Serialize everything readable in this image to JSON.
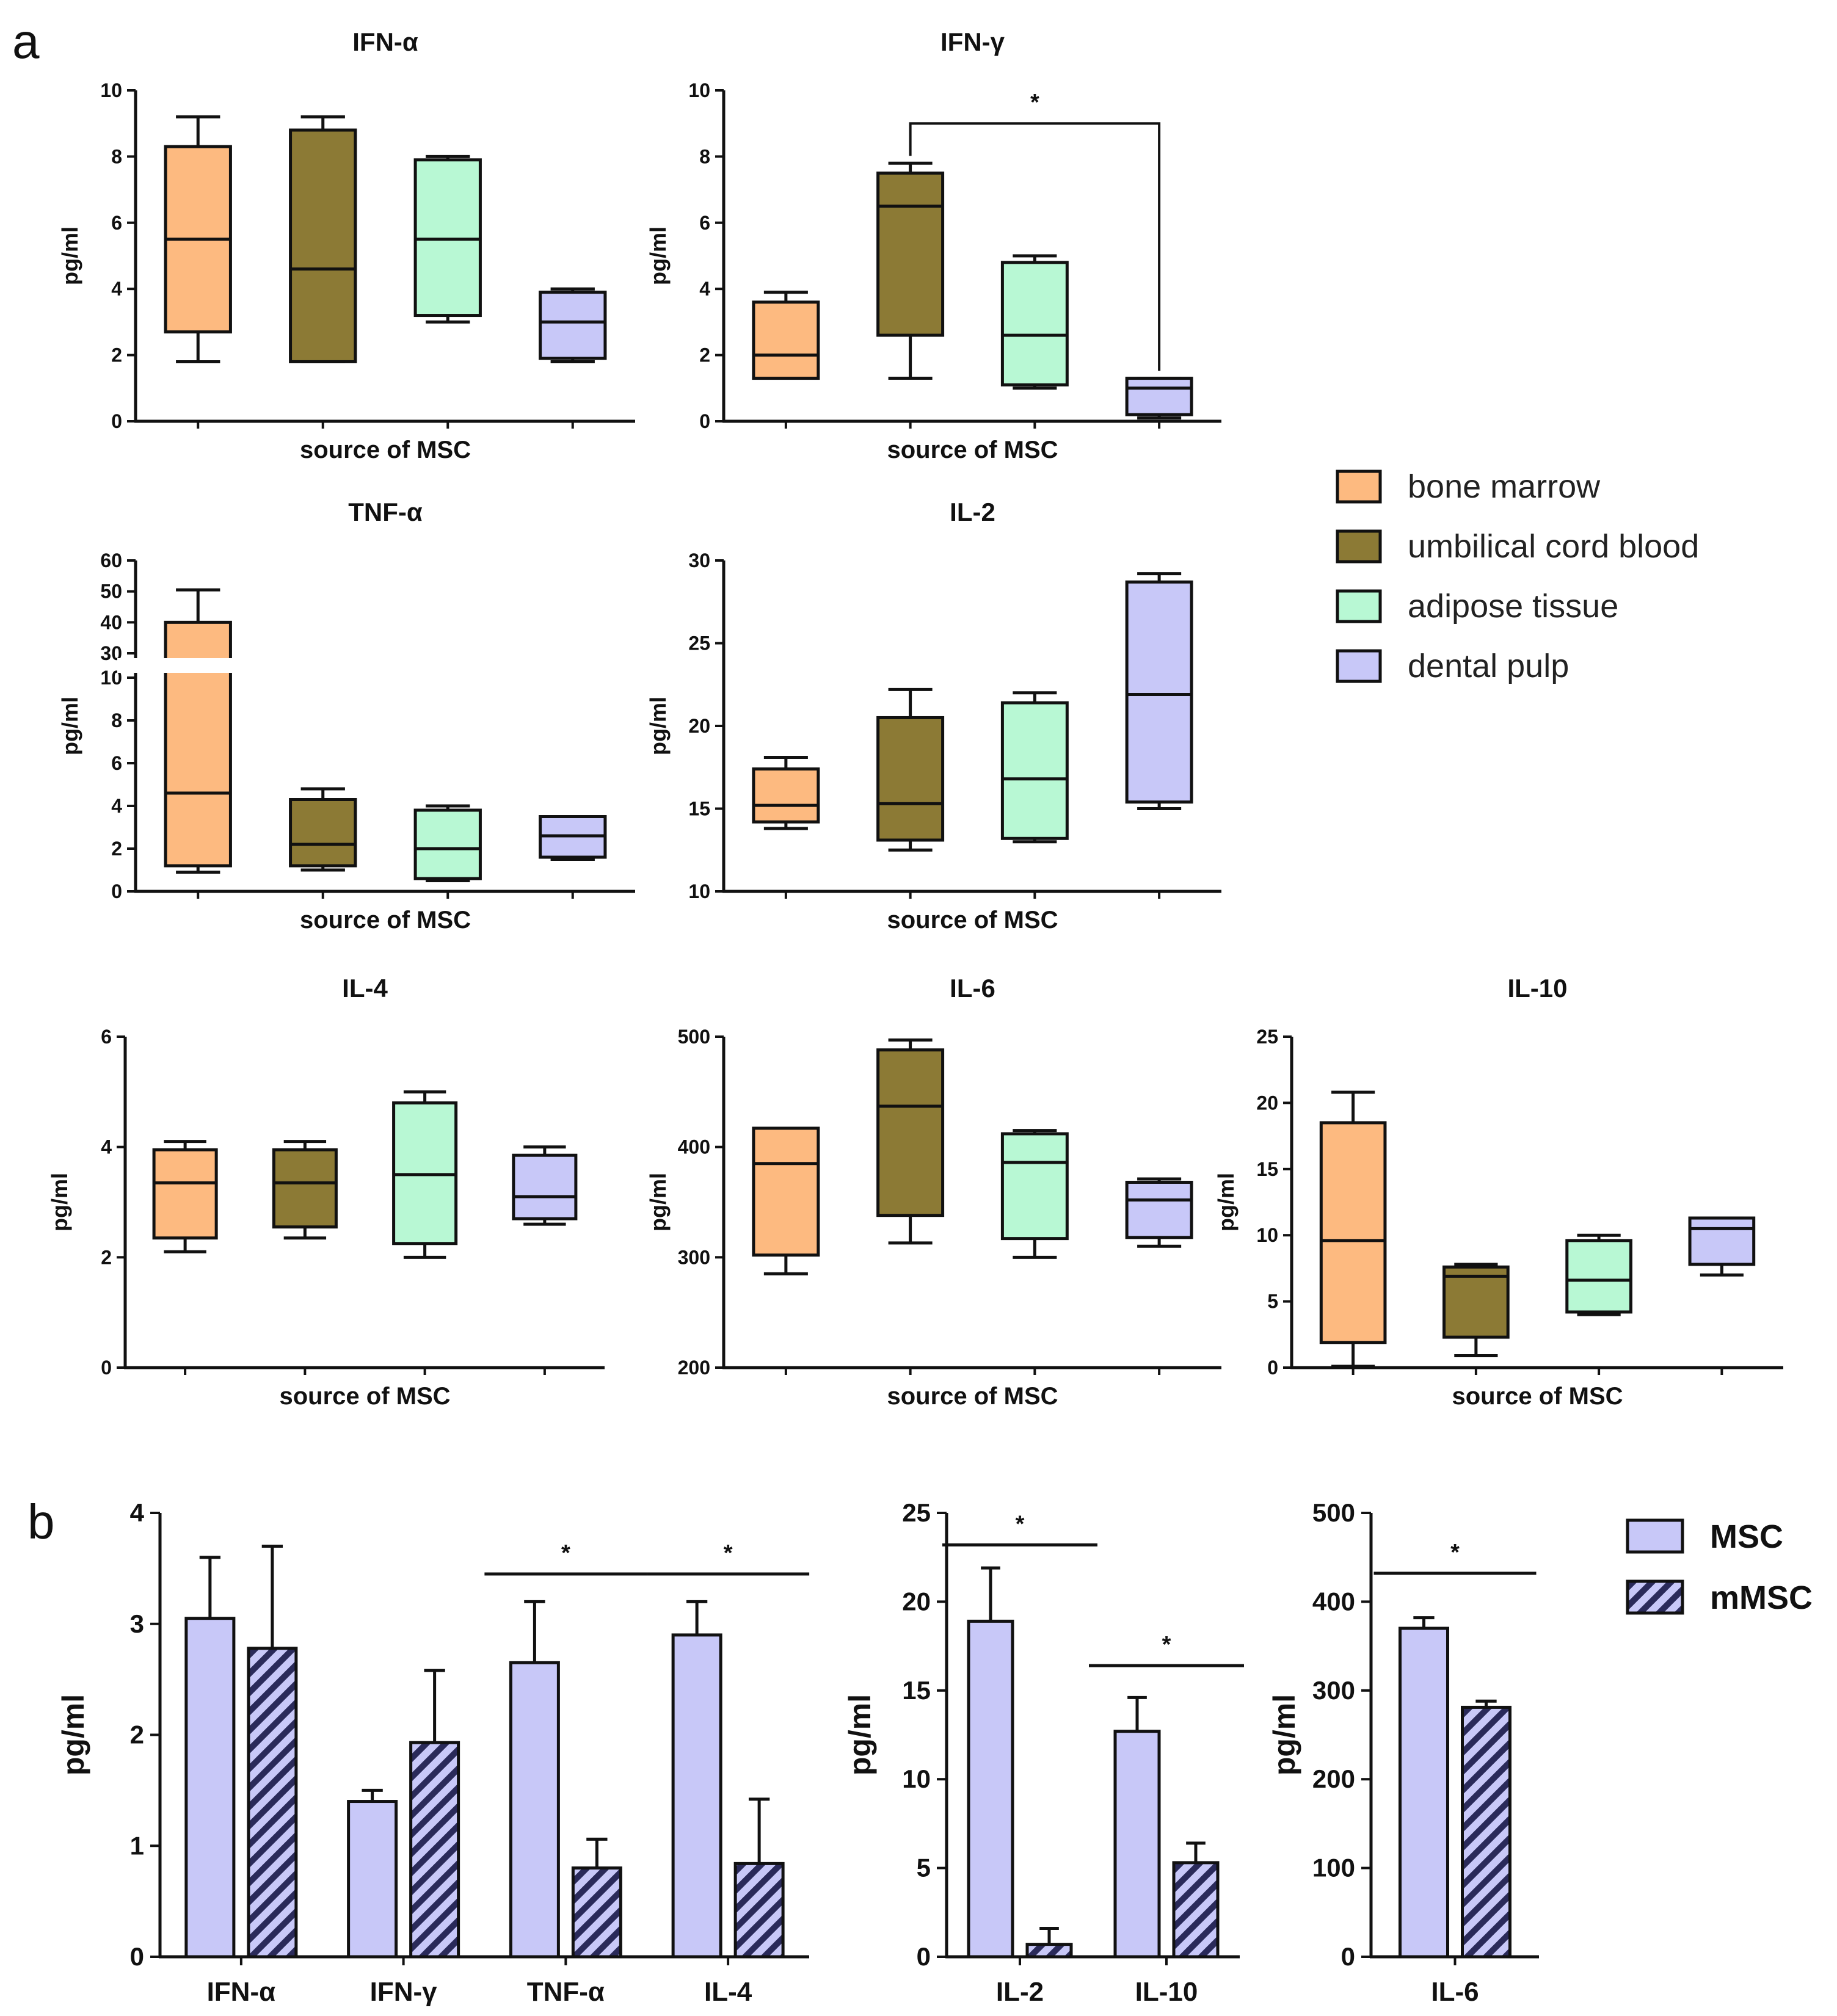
{
  "panel_labels": {
    "a": "a",
    "b": "b"
  },
  "colors": {
    "bone_marrow": "#FDBA80",
    "umbilical_cord_blood": "#8C7A35",
    "adipose_tissue": "#B8F8D4",
    "dental_pulp": "#C8C8F8",
    "msc": "#C8C8F8",
    "axis": "#111111"
  },
  "chart_data": [
    {
      "type": "box",
      "id": "ifn_alpha",
      "title": "IFN-α",
      "xlabel": "source of MSC",
      "ylabel": "pg/ml",
      "ylim": [
        0,
        10
      ],
      "yticks": [
        "0",
        "2",
        "4",
        "6",
        "8",
        "10"
      ],
      "groups": [
        "bone marrow",
        "umbilical cord blood",
        "adipose tissue",
        "dental pulp"
      ],
      "boxes": [
        {
          "min": 1.8,
          "q1": 2.7,
          "median": 5.5,
          "q3": 8.3,
          "max": 9.2
        },
        {
          "min": 1.8,
          "q1": 1.8,
          "median": 4.6,
          "q3": 8.8,
          "max": 9.2
        },
        {
          "min": 3.0,
          "q1": 3.2,
          "median": 5.5,
          "q3": 7.9,
          "max": 8.0
        },
        {
          "min": 1.8,
          "q1": 1.9,
          "median": 3.0,
          "q3": 3.9,
          "max": 4.0
        }
      ]
    },
    {
      "type": "box",
      "id": "ifn_gamma",
      "title": "IFN-γ",
      "xlabel": "source of MSC",
      "ylabel": "pg/ml",
      "ylim": [
        0,
        10
      ],
      "yticks": [
        "0",
        "2",
        "4",
        "6",
        "8",
        "10"
      ],
      "groups": [
        "bone marrow",
        "umbilical cord blood",
        "adipose tissue",
        "dental pulp"
      ],
      "boxes": [
        {
          "min": 1.3,
          "q1": 1.3,
          "median": 2.0,
          "q3": 3.6,
          "max": 3.9
        },
        {
          "min": 1.3,
          "q1": 2.6,
          "median": 6.5,
          "q3": 7.5,
          "max": 7.8
        },
        {
          "min": 1.0,
          "q1": 1.1,
          "median": 2.6,
          "q3": 4.8,
          "max": 5.0
        },
        {
          "min": 0.1,
          "q1": 0.2,
          "median": 1.0,
          "q3": 1.3,
          "max": 1.3
        }
      ],
      "significance": [
        {
          "from": 1,
          "to": 3,
          "level": 9.0,
          "label": "*"
        }
      ]
    },
    {
      "type": "box",
      "id": "tnf_alpha",
      "title": "TNF-α",
      "xlabel": "source of MSC",
      "ylabel": "pg/ml",
      "broken_axis": true,
      "lower_range": [
        0,
        10
      ],
      "lower_ticks": [
        "0",
        "2",
        "4",
        "6",
        "8",
        "10"
      ],
      "upper_range": [
        30,
        60
      ],
      "upper_ticks": [
        "30",
        "40",
        "50",
        "60"
      ],
      "groups": [
        "bone marrow",
        "umbilical cord blood",
        "adipose tissue",
        "dental pulp"
      ],
      "boxes": [
        {
          "min": 0.9,
          "q1": 1.2,
          "median": 4.6,
          "q3": 40.0,
          "max": 50.5
        },
        {
          "min": 1.0,
          "q1": 1.2,
          "median": 2.2,
          "q3": 4.3,
          "max": 4.8
        },
        {
          "min": 0.5,
          "q1": 0.6,
          "median": 2.0,
          "q3": 3.8,
          "max": 4.0
        },
        {
          "min": 1.5,
          "q1": 1.6,
          "median": 2.6,
          "q3": 3.5,
          "max": 3.5
        }
      ]
    },
    {
      "type": "box",
      "id": "il_2",
      "title": "IL-2",
      "xlabel": "source of MSC",
      "ylabel": "pg/ml",
      "ylim": [
        10,
        30
      ],
      "yticks": [
        "10",
        "15",
        "20",
        "25",
        "30"
      ],
      "groups": [
        "bone marrow",
        "umbilical cord blood",
        "adipose tissue",
        "dental pulp"
      ],
      "boxes": [
        {
          "min": 13.8,
          "q1": 14.2,
          "median": 15.2,
          "q3": 17.4,
          "max": 18.1
        },
        {
          "min": 12.5,
          "q1": 13.1,
          "median": 15.3,
          "q3": 20.5,
          "max": 22.2
        },
        {
          "min": 13.0,
          "q1": 13.2,
          "median": 16.8,
          "q3": 21.4,
          "max": 22.0
        },
        {
          "min": 15.0,
          "q1": 15.4,
          "median": 21.9,
          "q3": 28.7,
          "max": 29.2
        }
      ]
    },
    {
      "type": "box",
      "id": "il_4",
      "title": "IL-4",
      "xlabel": "source of MSC",
      "ylabel": "pg/ml",
      "ylim": [
        0,
        6
      ],
      "yticks": [
        "0",
        "2",
        "4",
        "6"
      ],
      "groups": [
        "bone marrow",
        "umbilical cord blood",
        "adipose tissue",
        "dental pulp"
      ],
      "boxes": [
        {
          "min": 2.1,
          "q1": 2.35,
          "median": 3.35,
          "q3": 3.95,
          "max": 4.1
        },
        {
          "min": 2.35,
          "q1": 2.55,
          "median": 3.35,
          "q3": 3.95,
          "max": 4.1
        },
        {
          "min": 2.0,
          "q1": 2.25,
          "median": 3.5,
          "q3": 4.8,
          "max": 5.0
        },
        {
          "min": 2.6,
          "q1": 2.7,
          "median": 3.1,
          "q3": 3.85,
          "max": 4.0
        }
      ]
    },
    {
      "type": "box",
      "id": "il_6",
      "title": "IL-6",
      "xlabel": "source of MSC",
      "ylabel": "pg/ml",
      "ylim": [
        200,
        500
      ],
      "yticks": [
        "200",
        "300",
        "400",
        "500"
      ],
      "groups": [
        "bone marrow",
        "umbilical cord blood",
        "adipose tissue",
        "dental pulp"
      ],
      "boxes": [
        {
          "min": 285,
          "q1": 302,
          "median": 385,
          "q3": 417,
          "max": 417
        },
        {
          "min": 313,
          "q1": 338,
          "median": 437,
          "q3": 488,
          "max": 497
        },
        {
          "min": 300,
          "q1": 317,
          "median": 386,
          "q3": 412,
          "max": 415
        },
        {
          "min": 310,
          "q1": 318,
          "median": 352,
          "q3": 368,
          "max": 371
        }
      ]
    },
    {
      "type": "box",
      "id": "il_10",
      "title": "IL-10",
      "xlabel": "source of MSC",
      "ylabel": "pg/ml",
      "ylim": [
        0,
        25
      ],
      "yticks": [
        "0",
        "5",
        "10",
        "15",
        "20",
        "25"
      ],
      "groups": [
        "bone marrow",
        "umbilical cord blood",
        "adipose tissue",
        "dental pulp"
      ],
      "boxes": [
        {
          "min": 0.1,
          "q1": 1.9,
          "median": 9.6,
          "q3": 18.5,
          "max": 20.8
        },
        {
          "min": 0.9,
          "q1": 2.3,
          "median": 6.9,
          "q3": 7.6,
          "max": 7.8
        },
        {
          "min": 4.0,
          "q1": 4.2,
          "median": 6.6,
          "q3": 9.6,
          "max": 10.0
        },
        {
          "min": 7.0,
          "q1": 7.8,
          "median": 10.5,
          "q3": 11.3,
          "max": 11.3
        }
      ]
    },
    {
      "type": "bar",
      "id": "b_left",
      "ylabel": "pg/ml",
      "ylim": [
        0,
        4
      ],
      "yticks": [
        "0",
        "1",
        "2",
        "3",
        "4"
      ],
      "categories": [
        "IFN-α",
        "IFN-γ",
        "TNF-α",
        "IL-4"
      ],
      "series": [
        {
          "name": "MSC",
          "values": [
            3.05,
            1.4,
            2.65,
            2.9
          ],
          "errors": [
            0.55,
            0.1,
            0.55,
            0.3
          ]
        },
        {
          "name": "mMSC",
          "values": [
            2.78,
            1.93,
            0.8,
            0.84
          ],
          "errors": [
            0.92,
            0.65,
            0.26,
            0.58
          ]
        }
      ],
      "significance": [
        {
          "category": 2,
          "level": 3.45,
          "label": "*"
        },
        {
          "category": 3,
          "level": 3.45,
          "label": "*"
        }
      ]
    },
    {
      "type": "bar",
      "id": "b_mid",
      "ylabel": "pg/ml",
      "ylim": [
        0,
        25
      ],
      "yticks": [
        "0",
        "5",
        "10",
        "15",
        "20",
        "25"
      ],
      "categories": [
        "IL-2",
        "IL-10"
      ],
      "series": [
        {
          "name": "MSC",
          "values": [
            18.9,
            12.7
          ],
          "errors": [
            3.0,
            1.9
          ]
        },
        {
          "name": "mMSC",
          "values": [
            0.7,
            5.3
          ],
          "errors": [
            0.9,
            1.1
          ]
        }
      ],
      "significance": [
        {
          "category": 0,
          "level": 23.2,
          "label": "*"
        },
        {
          "category": 1,
          "level": 16.4,
          "label": "*"
        }
      ]
    },
    {
      "type": "bar",
      "id": "b_right",
      "ylabel": "pg/ml",
      "ylim": [
        0,
        500
      ],
      "yticks": [
        "0",
        "100",
        "200",
        "300",
        "400",
        "500"
      ],
      "categories": [
        "IL-6"
      ],
      "series": [
        {
          "name": "MSC",
          "values": [
            370
          ],
          "errors": [
            12
          ]
        },
        {
          "name": "mMSC",
          "values": [
            281
          ],
          "errors": [
            7
          ]
        }
      ],
      "significance": [
        {
          "category": 0,
          "level": 432,
          "label": "*"
        }
      ]
    }
  ],
  "legend_a": [
    "bone marrow",
    "umbilical cord blood",
    "adipose tissue",
    "dental pulp"
  ],
  "legend_b": [
    "MSC",
    "mMSC"
  ]
}
